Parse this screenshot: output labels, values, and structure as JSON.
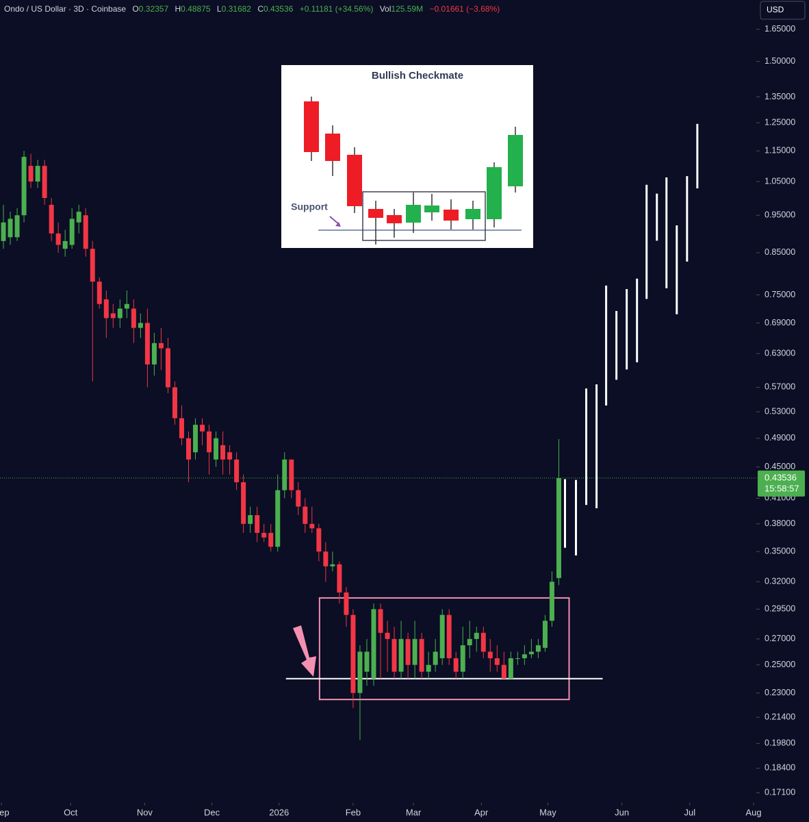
{
  "chart_data": {
    "type": "candlestick",
    "title": "Ondo / US Dollar · 3D · Coinbase",
    "ohlc_labels": [
      "O",
      "H",
      "L",
      "C"
    ],
    "change_label": "+0.11181 (+34.56%)",
    "volume_label": "Vol",
    "volume": "125.59M",
    "volume_change": "−0.01661 (−3.68%)",
    "currency": "USD",
    "countdown": "15:58:57",
    "up_color": "#4caf50",
    "down_color": "#f23645",
    "log_scale": true,
    "ylim": [
      0.166,
      1.8
    ],
    "yticks": [
      {
        "value": 1.65,
        "label": "1.65000"
      },
      {
        "value": 1.5,
        "label": "1.50000"
      },
      {
        "value": 1.35,
        "label": "1.35000"
      },
      {
        "value": 1.25,
        "label": "1.25000"
      },
      {
        "value": 1.15,
        "label": "1.15000"
      },
      {
        "value": 1.05,
        "label": "1.05000"
      },
      {
        "value": 0.95,
        "label": "0.95000"
      },
      {
        "value": 0.85,
        "label": "0.85000"
      },
      {
        "value": 0.75,
        "label": "0.75000"
      },
      {
        "value": 0.69,
        "label": "0.69000"
      },
      {
        "value": 0.63,
        "label": "0.63000"
      },
      {
        "value": 0.57,
        "label": "0.57000"
      },
      {
        "value": 0.53,
        "label": "0.53000"
      },
      {
        "value": 0.49,
        "label": "0.49000"
      },
      {
        "value": 0.45,
        "label": "0.45000"
      },
      {
        "value": 0.41,
        "label": "0.41000"
      },
      {
        "value": 0.38,
        "label": "0.38000"
      },
      {
        "value": 0.35,
        "label": "0.35000"
      },
      {
        "value": 0.32,
        "label": "0.32000"
      },
      {
        "value": 0.295,
        "label": "0.29500"
      },
      {
        "value": 0.27,
        "label": "0.27000"
      },
      {
        "value": 0.25,
        "label": "0.25000"
      },
      {
        "value": 0.23,
        "label": "0.23000"
      },
      {
        "value": 0.214,
        "label": "0.21400"
      },
      {
        "value": 0.198,
        "label": "0.19800"
      },
      {
        "value": 0.184,
        "label": "0.18400"
      },
      {
        "value": 0.171,
        "label": "0.17100"
      }
    ],
    "xlim": [
      -0.5,
      109.8
    ],
    "xticks": [
      {
        "value": -0.3,
        "label": "Sep"
      },
      {
        "value": 9.8,
        "label": "Oct"
      },
      {
        "value": 20.6,
        "label": "Nov"
      },
      {
        "value": 30.4,
        "label": "Dec"
      },
      {
        "value": 40.2,
        "label": "2026"
      },
      {
        "value": 51.0,
        "label": "Feb"
      },
      {
        "value": 59.8,
        "label": "Mar"
      },
      {
        "value": 69.7,
        "label": "Apr"
      },
      {
        "value": 79.4,
        "label": "May"
      },
      {
        "value": 90.2,
        "label": "Jun"
      },
      {
        "value": 100.1,
        "label": "Jul"
      },
      {
        "value": 109.4,
        "label": "Aug"
      }
    ],
    "series": [
      {
        "open": [
          0.88,
          0.89,
          0.89,
          0.95,
          1.1,
          1.05,
          1.1,
          0.98,
          0.9,
          0.86,
          0.87,
          0.93,
          0.95,
          0.86,
          0.78,
          0.74,
          0.71,
          0.7,
          0.72,
          0.72,
          0.68,
          0.69,
          0.61,
          0.65,
          0.64,
          0.57,
          0.52,
          0.49,
          0.47,
          0.51,
          0.5,
          0.46,
          0.48,
          0.47,
          0.46,
          0.43,
          0.38,
          0.39,
          0.37,
          0.37,
          0.355,
          0.42,
          0.46,
          0.42,
          0.4,
          0.38,
          0.375,
          0.35,
          0.335,
          0.337,
          0.31,
          0.29,
          0.23,
          0.245,
          0.24,
          0.295,
          0.275,
          0.27,
          0.245,
          0.27,
          0.25,
          0.27,
          0.245,
          0.25,
          0.255,
          0.29,
          0.255,
          0.245,
          0.265,
          0.27,
          0.275,
          0.26,
          0.255,
          0.25,
          0.24,
          0.255,
          0.255,
          0.258,
          0.26,
          0.263,
          0.285,
          0.32357
        ],
        "high": [
          0.98,
          0.96,
          0.97,
          1.15,
          1.14,
          1.12,
          1.12,
          1.0,
          0.93,
          0.91,
          0.97,
          0.98,
          0.97,
          0.88,
          0.79,
          0.76,
          0.73,
          0.74,
          0.76,
          0.74,
          0.71,
          0.72,
          0.67,
          0.68,
          0.66,
          0.58,
          0.54,
          0.5,
          0.52,
          0.52,
          0.51,
          0.5,
          0.5,
          0.48,
          0.47,
          0.44,
          0.4,
          0.4,
          0.38,
          0.38,
          0.44,
          0.47,
          0.46,
          0.43,
          0.41,
          0.4,
          0.38,
          0.36,
          0.35,
          0.34,
          0.315,
          0.295,
          0.265,
          0.27,
          0.3,
          0.3,
          0.285,
          0.28,
          0.285,
          0.275,
          0.285,
          0.275,
          0.26,
          0.27,
          0.295,
          0.295,
          0.26,
          0.28,
          0.285,
          0.28,
          0.28,
          0.27,
          0.265,
          0.26,
          0.26,
          0.26,
          0.265,
          0.27,
          0.27,
          0.29,
          0.33,
          0.48875
        ],
        "low": [
          0.86,
          0.87,
          0.88,
          0.93,
          1.03,
          1.03,
          0.98,
          0.88,
          0.85,
          0.84,
          0.86,
          0.9,
          0.84,
          0.58,
          0.72,
          0.66,
          0.68,
          0.68,
          0.7,
          0.65,
          0.66,
          0.57,
          0.59,
          0.6,
          0.56,
          0.51,
          0.48,
          0.43,
          0.46,
          0.48,
          0.44,
          0.45,
          0.44,
          0.44,
          0.42,
          0.37,
          0.37,
          0.36,
          0.36,
          0.35,
          0.35,
          0.41,
          0.41,
          0.39,
          0.37,
          0.37,
          0.34,
          0.32,
          0.33,
          0.3,
          0.28,
          0.22,
          0.2,
          0.235,
          0.235,
          0.24,
          0.245,
          0.24,
          0.24,
          0.24,
          0.24,
          0.24,
          0.24,
          0.245,
          0.25,
          0.25,
          0.24,
          0.24,
          0.255,
          0.26,
          0.255,
          0.245,
          0.245,
          0.24,
          0.24,
          0.25,
          0.25,
          0.255,
          0.255,
          0.26,
          0.28,
          0.31682
        ],
        "close": [
          0.93,
          0.94,
          0.95,
          1.13,
          1.05,
          1.1,
          1.0,
          0.9,
          0.87,
          0.88,
          0.94,
          0.96,
          0.86,
          0.78,
          0.73,
          0.7,
          0.7,
          0.72,
          0.73,
          0.68,
          0.69,
          0.61,
          0.65,
          0.64,
          0.57,
          0.52,
          0.49,
          0.46,
          0.51,
          0.5,
          0.47,
          0.49,
          0.46,
          0.46,
          0.43,
          0.38,
          0.39,
          0.37,
          0.365,
          0.355,
          0.42,
          0.46,
          0.42,
          0.4,
          0.38,
          0.375,
          0.35,
          0.335,
          0.337,
          0.31,
          0.29,
          0.23,
          0.26,
          0.26,
          0.295,
          0.275,
          0.27,
          0.245,
          0.27,
          0.25,
          0.27,
          0.245,
          0.25,
          0.26,
          0.29,
          0.255,
          0.245,
          0.265,
          0.27,
          0.275,
          0.26,
          0.255,
          0.25,
          0.24,
          0.255,
          0.255,
          0.258,
          0.26,
          0.265,
          0.285,
          0.32,
          0.43536
        ]
      }
    ],
    "projection": {
      "color": "#ffffff",
      "x": [
        81.9,
        83.5,
        85.0,
        86.5,
        87.9,
        89.4,
        90.9,
        92.4,
        93.8,
        95.3,
        96.7,
        98.2,
        99.7,
        101.2
      ],
      "high": [
        0.434,
        0.433,
        0.568,
        0.575,
        0.771,
        0.715,
        0.763,
        0.787,
        1.04,
        1.013,
        1.063,
        0.922,
        1.067,
        1.246
      ],
      "low": [
        0.354,
        0.346,
        0.402,
        0.398,
        0.54,
        0.583,
        0.601,
        0.614,
        0.741,
        0.881,
        0.765,
        0.708,
        0.828,
        1.029
      ]
    },
    "annotations": [
      {
        "type": "box",
        "x": [
          46.1,
          82.5
        ],
        "y": [
          0.2256,
          0.305
        ],
        "color": "#f48fb1"
      },
      {
        "type": "hline",
        "x": [
          41.2,
          87.4
        ],
        "y": 0.24,
        "color": "#ffffff"
      }
    ],
    "inset": {
      "title": "Bullish  Checkmate",
      "support_label": "Support"
    }
  }
}
